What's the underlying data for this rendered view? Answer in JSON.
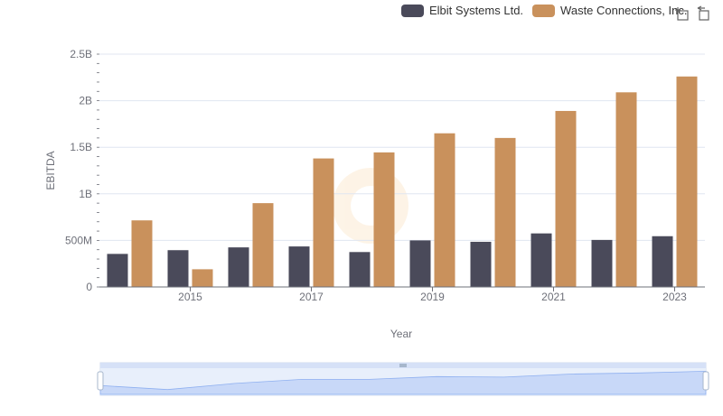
{
  "legend": {
    "items": [
      {
        "label": "Elbit Systems Ltd.",
        "color": "#4a4a5a"
      },
      {
        "label": "Waste Connections, Inc.",
        "color": "#c9915c"
      }
    ]
  },
  "toolbox": {
    "zoom_icon": "zoom-icon",
    "restore_icon": "restore-icon"
  },
  "chart_data": {
    "type": "bar",
    "xlabel": "Year",
    "ylabel": "EBITDA",
    "categories": [
      "2014",
      "2015",
      "2016",
      "2017",
      "2018",
      "2019",
      "2020",
      "2021",
      "2022",
      "2023"
    ],
    "x_tick_labels": [
      "2015",
      "2017",
      "2019",
      "2021",
      "2023"
    ],
    "y_tick_labels": [
      "0",
      "500M",
      "1B",
      "1.5B",
      "2B",
      "2.5B"
    ],
    "ylim": [
      0,
      2500000000
    ],
    "grid": true,
    "legend_position": "top-right",
    "series": [
      {
        "name": "Elbit Systems Ltd.",
        "color": "#4a4a5a",
        "values": [
          355000000,
          395000000,
          425000000,
          435000000,
          375000000,
          500000000,
          485000000,
          575000000,
          505000000,
          545000000
        ]
      },
      {
        "name": "Waste Connections, Inc.",
        "color": "#c9915c",
        "values": [
          715000000,
          190000000,
          900000000,
          1380000000,
          1445000000,
          1650000000,
          1600000000,
          1890000000,
          2090000000,
          2260000000
        ]
      }
    ]
  }
}
